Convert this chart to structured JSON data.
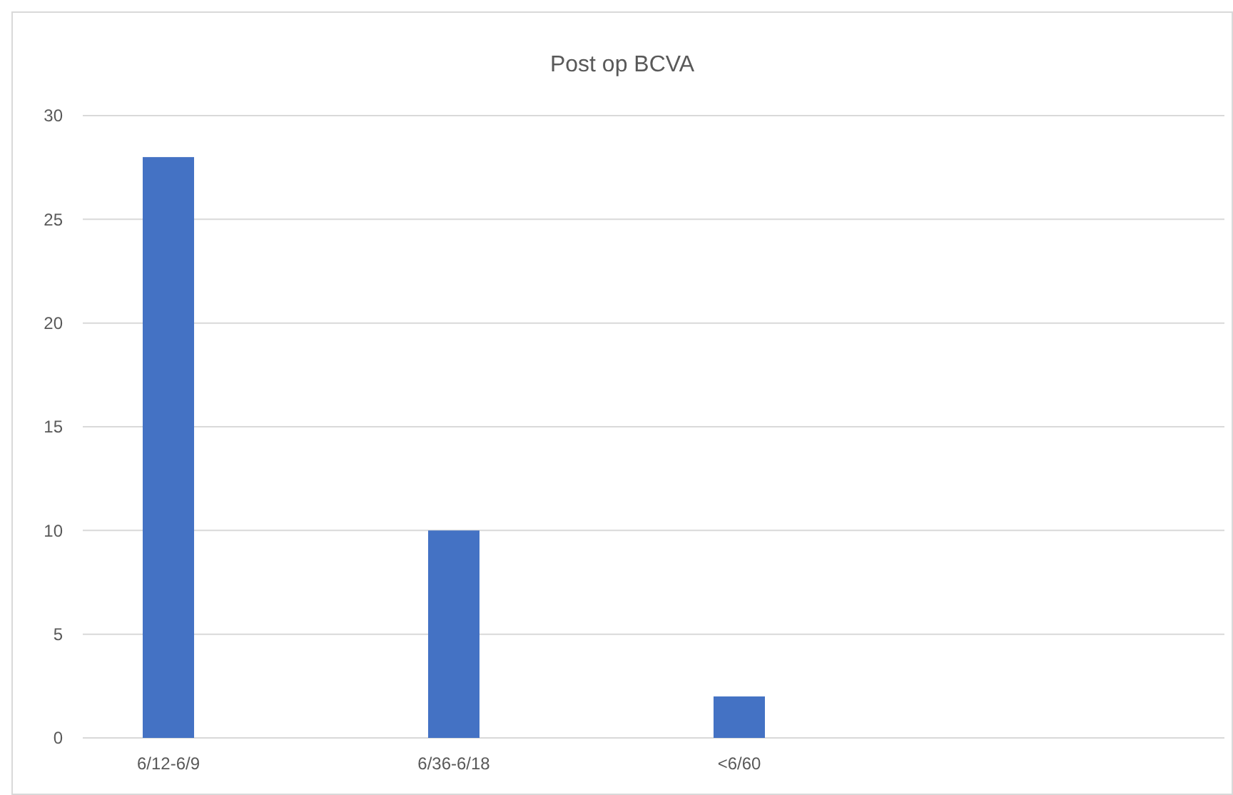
{
  "chart_data": {
    "type": "bar",
    "title": "Post op BCVA",
    "categories": [
      "6/12-6/9",
      "6/36-6/18",
      "<6/60",
      null
    ],
    "values": [
      28,
      10,
      2,
      null
    ],
    "color": "#4472c4",
    "ylim": [
      0,
      30
    ],
    "yticks": [
      0,
      5,
      10,
      15,
      20,
      25,
      30
    ],
    "grid": "y"
  }
}
